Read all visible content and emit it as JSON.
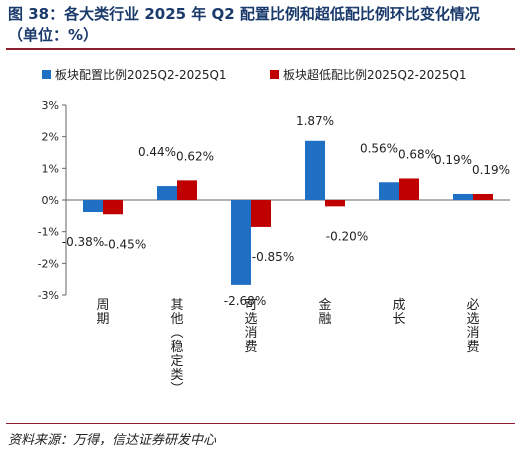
{
  "figure": {
    "title": "图 38：各大类行业 2025 年 Q2 配置比例和超低配比例环比变化情况 （单位：%）",
    "source": "资料来源：万得，信达证券研发中心"
  },
  "colors": {
    "series1": "#1f6fc5",
    "series2": "#c00000",
    "rule": "#8a1f2b",
    "title": "#1a3a6b"
  },
  "chart_data": {
    "type": "bar",
    "categories": [
      "周期",
      "其他（稳定类）",
      "可选消费",
      "金融",
      "成长",
      "必选消费"
    ],
    "series": [
      {
        "name": "板块配置比例2025Q2-2025Q1",
        "values": [
          -0.38,
          0.44,
          -2.68,
          1.87,
          0.56,
          0.19
        ],
        "labels": [
          "-0.38%",
          "0.44%",
          "-2.68%",
          "1.87%",
          "0.56%",
          "0.19%"
        ]
      },
      {
        "name": "板块超低配比例2025Q2-2025Q1",
        "values": [
          -0.45,
          0.62,
          -0.85,
          -0.2,
          0.68,
          0.19
        ],
        "labels": [
          "-0.45%",
          "0.62%",
          "-0.85%",
          "-0.20%",
          "0.68%",
          "0.19%"
        ]
      }
    ],
    "yticks": [
      "-3%",
      "-2%",
      "-1%",
      "0%",
      "1%",
      "2%",
      "3%"
    ],
    "ylim": [
      -3,
      3
    ],
    "legend": "top",
    "grid": false
  }
}
